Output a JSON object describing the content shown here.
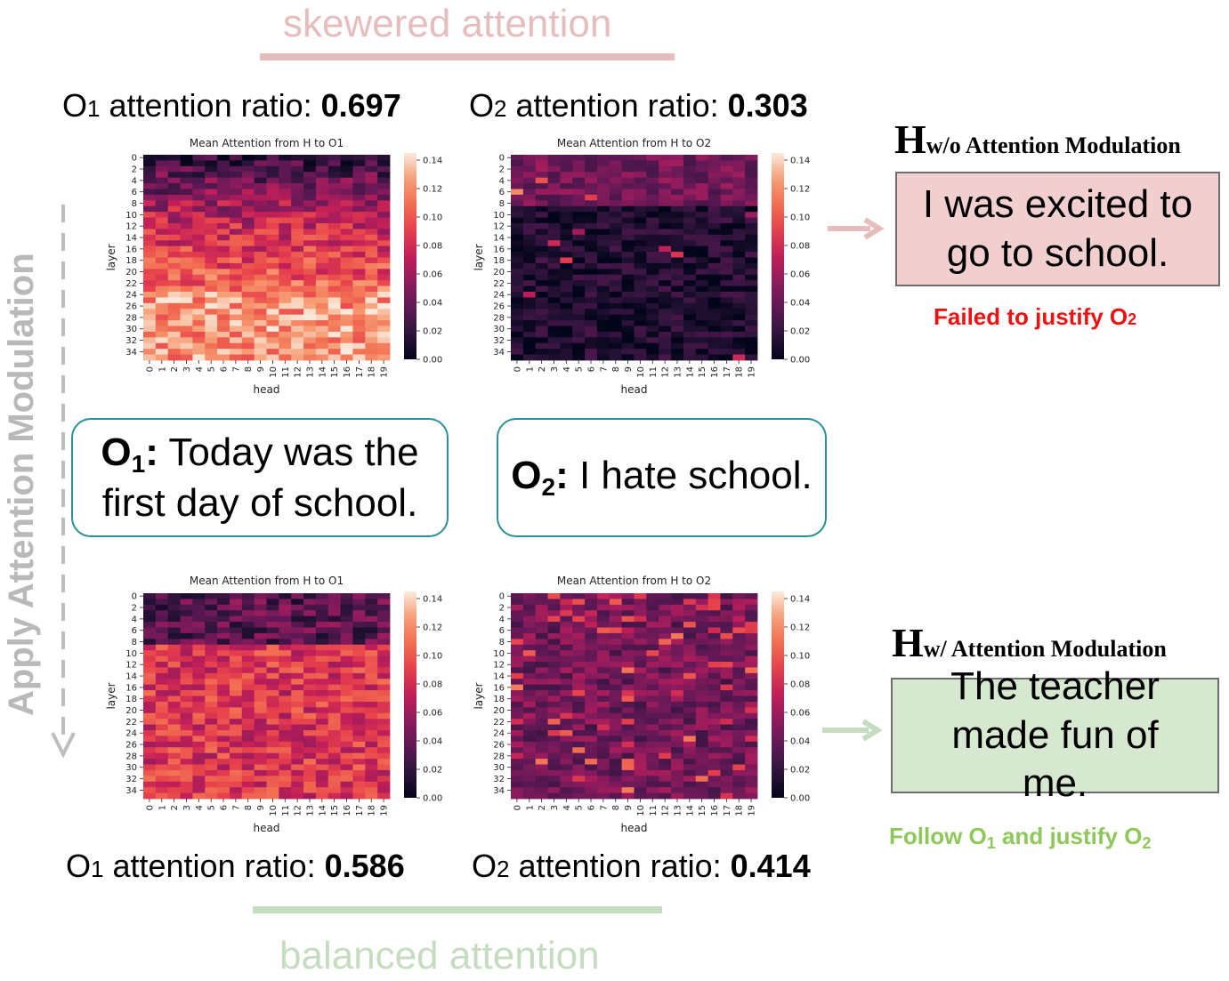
{
  "top_label": "skewered attention",
  "bottom_label": "balanced attention",
  "side_label": "Apply Attention Modulation",
  "colors": {
    "top_accent": "#e5bdbd",
    "bottom_accent": "#c6dcc1",
    "side_arrow": "#bdbdbd",
    "obs_border": "#2a8f97",
    "hyp_bad_fill": "#f1cfcf",
    "hyp_good_fill": "#d6e8cf",
    "fail_text": "#ee1111",
    "success_text": "#8ec85a"
  },
  "ratios": {
    "top": [
      {
        "prefix": "O",
        "sub": "1",
        "text": " attention ratio: ",
        "value": "0.697"
      },
      {
        "prefix": "O",
        "sub": "2",
        "text": " attention ratio: ",
        "value": "0.303"
      }
    ],
    "bottom": [
      {
        "prefix": "O",
        "sub": "1",
        "text": " attention ratio: ",
        "value": "0.586"
      },
      {
        "prefix": "O",
        "sub": "2",
        "text": " attention ratio: ",
        "value": "0.414"
      }
    ]
  },
  "observations": {
    "o1": {
      "label": "O",
      "sub": "1",
      "colon": ":",
      "text": "Today was the first day of school."
    },
    "o2": {
      "label": "O",
      "sub": "2",
      "colon": ":",
      "text": "I hate school."
    }
  },
  "hypotheses": {
    "without": {
      "letter": "H",
      "subscript": "w/o Attention Modulation",
      "text": "I was excited to go to school.",
      "note_text": "Failed to justify O",
      "note_sub": "2"
    },
    "with": {
      "letter": "H",
      "subscript": "w/ Attention Modulation",
      "text": "The teacher made fun of me.",
      "note_pre": "Follow O",
      "note_sub1": "1",
      "note_mid": " and justify O",
      "note_sub2": "2"
    }
  },
  "chart_data": [
    {
      "type": "heatmap",
      "title": "Mean Attention from H to O1",
      "xlabel": "head",
      "ylabel": "layer",
      "x_range": [
        0,
        19
      ],
      "y_range": [
        0,
        35
      ],
      "colorbar_ticks": [
        "0.00",
        "0.02",
        "0.04",
        "0.06",
        "0.08",
        "0.10",
        "0.12",
        "0.14"
      ],
      "value_range": [
        0,
        0.145
      ],
      "mean_level": 0.085,
      "pattern": "low in top layers (0-9), high in bottom layers (24-35)"
    },
    {
      "type": "heatmap",
      "title": "Mean Attention from H to O2",
      "xlabel": "head",
      "ylabel": "layer",
      "x_range": [
        0,
        19
      ],
      "y_range": [
        0,
        35
      ],
      "colorbar_ticks": [
        "0.00",
        "0.02",
        "0.04",
        "0.06",
        "0.08",
        "0.10",
        "0.12",
        "0.14"
      ],
      "value_range": [
        0,
        0.145
      ],
      "mean_level": 0.025,
      "pattern": "moderate in top layers (0-8), near zero elsewhere"
    },
    {
      "type": "heatmap",
      "title": "Mean Attention from H to O1",
      "xlabel": "head",
      "ylabel": "layer",
      "x_range": [
        0,
        19
      ],
      "y_range": [
        0,
        35
      ],
      "colorbar_ticks": [
        "0.00",
        "0.02",
        "0.04",
        "0.06",
        "0.08",
        "0.10",
        "0.12",
        "0.14"
      ],
      "value_range": [
        0,
        0.145
      ],
      "mean_level": 0.075,
      "pattern": "low in top layers (2-8), moderate-high in bottom layers"
    },
    {
      "type": "heatmap",
      "title": "Mean Attention from H to O2",
      "xlabel": "head",
      "ylabel": "layer",
      "x_range": [
        0,
        19
      ],
      "y_range": [
        0,
        35
      ],
      "colorbar_ticks": [
        "0.00",
        "0.02",
        "0.04",
        "0.06",
        "0.08",
        "0.10",
        "0.12",
        "0.14"
      ],
      "value_range": [
        0,
        0.145
      ],
      "mean_level": 0.05,
      "pattern": "moderate throughout, brighter spots in top layers"
    }
  ]
}
